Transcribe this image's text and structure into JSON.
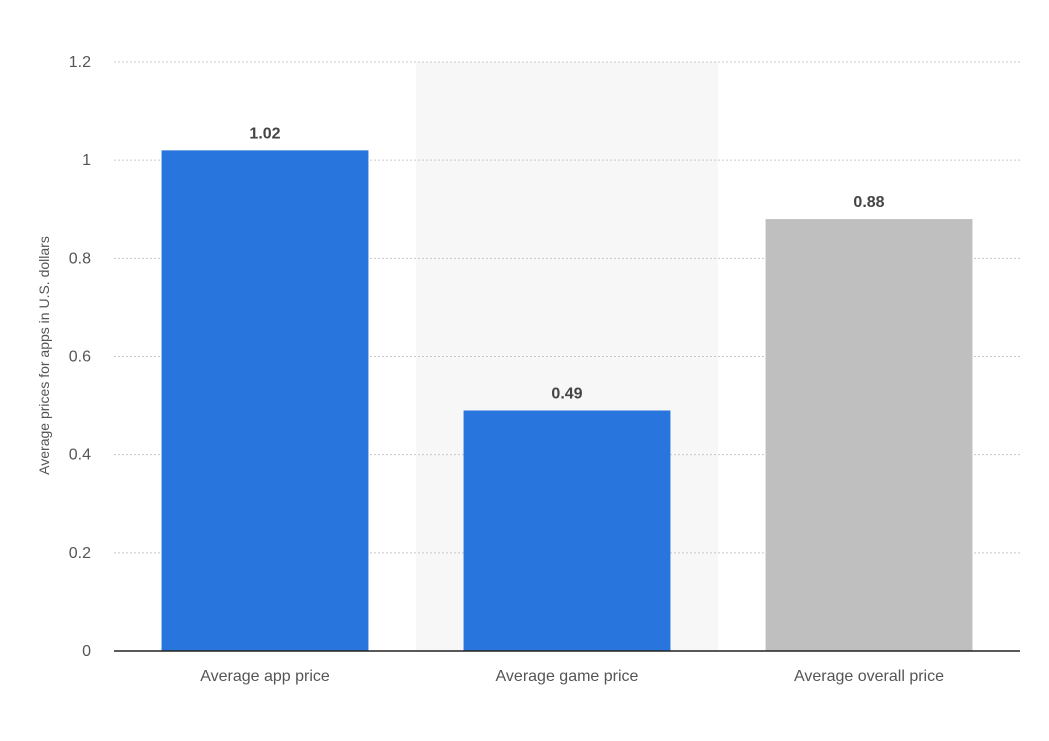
{
  "chart_data": {
    "type": "bar",
    "title": "",
    "xlabel": "",
    "ylabel": "Average prices for apps in U.S. dollars",
    "ylim": [
      0,
      1.2
    ],
    "yticks": [
      0,
      0.2,
      0.4,
      0.6,
      0.8,
      1,
      1.2
    ],
    "ytick_labels": [
      "0",
      "0.2",
      "0.4",
      "0.6",
      "0.8",
      "1",
      "1.2"
    ],
    "categories": [
      "Average app price",
      "Average game price",
      "Average overall price"
    ],
    "values": [
      1.02,
      0.49,
      0.88
    ],
    "value_labels": [
      "1.02",
      "0.49",
      "0.88"
    ],
    "bar_colors": [
      "#2876dd",
      "#2876dd",
      "#bfbfbf"
    ],
    "highlighted_category_index": 1,
    "highlight_color": "#f7f7f7",
    "grid": true,
    "grid_style": "dotted",
    "legend": "none"
  }
}
